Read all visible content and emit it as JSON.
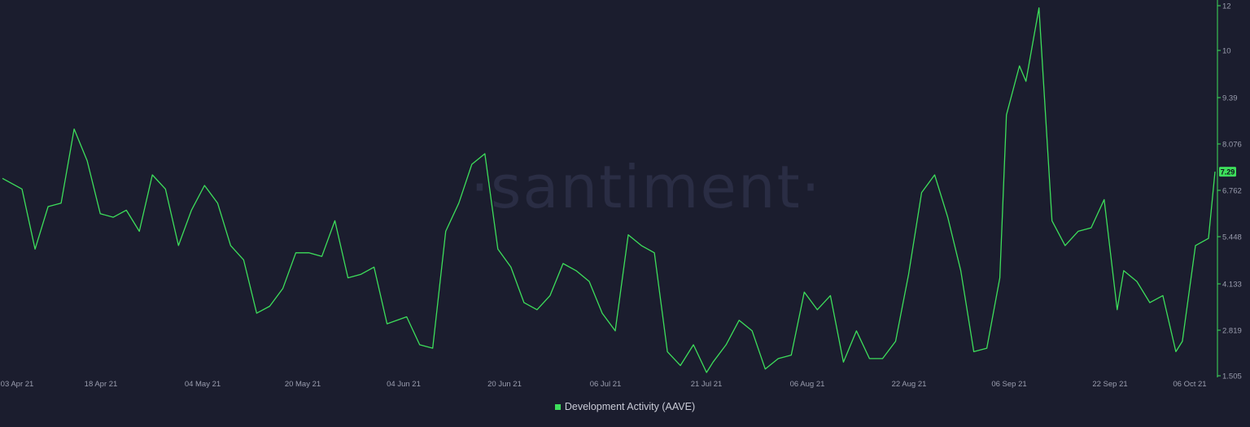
{
  "watermark": "·santiment·",
  "colors": {
    "background": "#1b1d2e",
    "line": "#3dde5b",
    "axis_text": "#9a9dae",
    "badge_bg": "#3dde5b",
    "badge_text": "#10121c"
  },
  "chart_data": {
    "type": "line",
    "title": "",
    "xlabel": "",
    "ylabel": "",
    "x_tick_labels": [
      "03 Apr 21",
      "18 Apr 21",
      "04 May 21",
      "20 May 21",
      "04 Jun 21",
      "20 Jun 21",
      "06 Jul 21",
      "21 Jul 21",
      "06 Aug 21",
      "22 Aug 21",
      "06 Sep 21",
      "22 Sep 21",
      "06 Oct 21"
    ],
    "y_tick_labels": [
      "1.505",
      "2.819",
      "4.133",
      "5.448",
      "6.762",
      "8.076",
      "9.39",
      "10",
      "12"
    ],
    "y_tick_values": [
      1.505,
      2.819,
      4.133,
      5.448,
      6.762,
      8.076,
      9.39,
      10.0,
      12.0
    ],
    "ylim": [
      1.505,
      12.0
    ],
    "y_axis_position": "right",
    "grid": false,
    "legend_position": "bottom-center",
    "current_value_label": "7.29",
    "series": [
      {
        "name": "Development Activity (AAVE)",
        "x": [
          "2021-04-03",
          "2021-04-06",
          "2021-04-08",
          "2021-04-10",
          "2021-04-12",
          "2021-04-14",
          "2021-04-16",
          "2021-04-18",
          "2021-04-20",
          "2021-04-22",
          "2021-04-24",
          "2021-04-26",
          "2021-04-28",
          "2021-04-30",
          "2021-05-02",
          "2021-05-04",
          "2021-05-06",
          "2021-05-08",
          "2021-05-10",
          "2021-05-12",
          "2021-05-14",
          "2021-05-16",
          "2021-05-18",
          "2021-05-20",
          "2021-05-22",
          "2021-05-24",
          "2021-05-26",
          "2021-05-28",
          "2021-05-30",
          "2021-06-01",
          "2021-06-04",
          "2021-06-06",
          "2021-06-08",
          "2021-06-10",
          "2021-06-12",
          "2021-06-14",
          "2021-06-16",
          "2021-06-18",
          "2021-06-20",
          "2021-06-22",
          "2021-06-24",
          "2021-06-26",
          "2021-06-28",
          "2021-06-30",
          "2021-07-02",
          "2021-07-04",
          "2021-07-06",
          "2021-07-08",
          "2021-07-10",
          "2021-07-12",
          "2021-07-14",
          "2021-07-16",
          "2021-07-18",
          "2021-07-20",
          "2021-07-21",
          "2021-07-23",
          "2021-07-25",
          "2021-07-27",
          "2021-07-29",
          "2021-07-31",
          "2021-08-02",
          "2021-08-04",
          "2021-08-06",
          "2021-08-08",
          "2021-08-10",
          "2021-08-12",
          "2021-08-14",
          "2021-08-16",
          "2021-08-18",
          "2021-08-20",
          "2021-08-22",
          "2021-08-24",
          "2021-08-26",
          "2021-08-28",
          "2021-08-30",
          "2021-09-01",
          "2021-09-03",
          "2021-09-04",
          "2021-09-06",
          "2021-09-07",
          "2021-09-09",
          "2021-09-11",
          "2021-09-13",
          "2021-09-15",
          "2021-09-17",
          "2021-09-19",
          "2021-09-21",
          "2021-09-22",
          "2021-09-24",
          "2021-09-26",
          "2021-09-28",
          "2021-09-30",
          "2021-10-01",
          "2021-10-03",
          "2021-10-05",
          "2021-10-06"
        ],
        "y": [
          7.1,
          6.8,
          5.1,
          6.3,
          6.4,
          8.5,
          7.6,
          6.1,
          6.0,
          6.2,
          5.6,
          7.2,
          6.8,
          5.2,
          6.2,
          6.9,
          6.4,
          5.2,
          4.8,
          3.3,
          3.5,
          4.0,
          5.0,
          5.0,
          4.9,
          5.9,
          4.3,
          4.4,
          4.6,
          3.0,
          3.2,
          2.4,
          2.3,
          5.6,
          6.4,
          7.5,
          7.8,
          5.1,
          4.6,
          3.6,
          3.4,
          3.8,
          4.7,
          4.5,
          4.2,
          3.3,
          2.8,
          5.5,
          5.2,
          5.0,
          2.2,
          1.8,
          2.4,
          1.6,
          1.9,
          2.4,
          3.1,
          2.8,
          1.7,
          2.0,
          2.1,
          3.9,
          3.4,
          3.8,
          1.9,
          2.8,
          2.0,
          2.0,
          2.5,
          4.4,
          6.7,
          7.2,
          6.0,
          4.5,
          2.2,
          2.3,
          4.3,
          8.9,
          9.8,
          9.6,
          11.9,
          5.9,
          5.2,
          5.6,
          5.7,
          6.5,
          3.4,
          4.5,
          4.2,
          3.6,
          3.8,
          2.2,
          2.5,
          5.2,
          5.4,
          7.29
        ]
      }
    ]
  }
}
